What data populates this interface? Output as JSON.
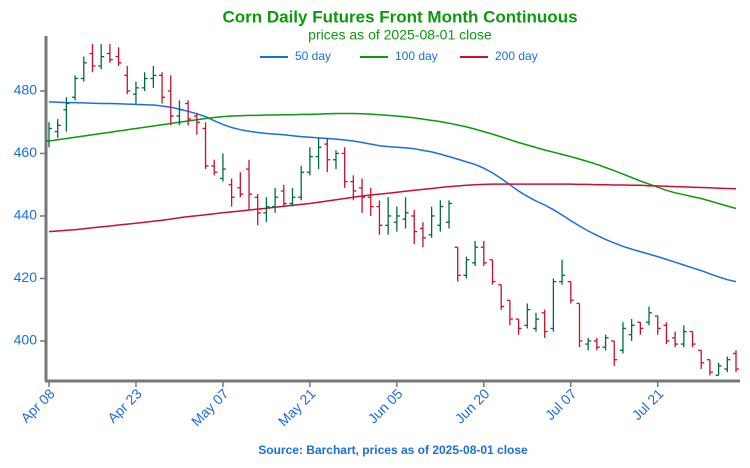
{
  "chart_data": {
    "type": "ohlc",
    "title": "Corn Daily Futures Front Month Continuous",
    "subtitle": "prices as of 2025-08-01 close",
    "footer": "Source: Barchart, prices as of 2025-08-01 close",
    "categories": [
      "Apr 08",
      null,
      null,
      null,
      null,
      null,
      null,
      null,
      null,
      null,
      "Apr 23",
      null,
      null,
      null,
      null,
      null,
      null,
      null,
      null,
      null,
      "May 07",
      null,
      null,
      null,
      null,
      null,
      null,
      null,
      null,
      null,
      "May 21",
      null,
      null,
      null,
      null,
      null,
      null,
      null,
      null,
      null,
      "Jun 05",
      null,
      null,
      null,
      null,
      null,
      null,
      null,
      null,
      null,
      "Jun 20",
      null,
      null,
      null,
      null,
      null,
      null,
      null,
      null,
      null,
      "Jul 07",
      null,
      null,
      null,
      null,
      null,
      null,
      null,
      null,
      null,
      "Jul 21",
      null,
      null,
      null,
      null,
      null,
      null,
      null,
      null,
      null
    ],
    "up_color": "#006b3c",
    "down_color": "#c8102e",
    "open": [
      464,
      467,
      474,
      478,
      484,
      492,
      488,
      492,
      491,
      485,
      479,
      481,
      484,
      485,
      480,
      472,
      476,
      472,
      468,
      456,
      452,
      450,
      449,
      455,
      446,
      441,
      443,
      448,
      444,
      446,
      454,
      459,
      463,
      458,
      460,
      451,
      449,
      446,
      443,
      437,
      438,
      439,
      440,
      436,
      434,
      437,
      438,
      430,
      421,
      425,
      430,
      426,
      418,
      413,
      407,
      405,
      404,
      409,
      404,
      419,
      419,
      412,
      399,
      400,
      398,
      400,
      397,
      402,
      406,
      406,
      408,
      405,
      401,
      399,
      403,
      397,
      394,
      389,
      391,
      396
    ],
    "high": [
      470,
      471,
      478,
      485,
      491,
      495,
      495,
      495,
      494,
      488,
      483,
      486,
      488,
      486,
      485,
      477,
      477,
      473,
      470,
      458,
      460,
      452,
      454,
      458,
      447,
      446,
      449,
      450,
      449,
      456,
      462,
      465,
      465,
      461,
      462,
      453,
      452,
      449,
      445,
      446,
      443,
      446,
      442,
      438,
      443,
      445,
      445,
      430,
      427,
      432,
      432,
      426,
      418,
      413,
      407,
      412,
      409,
      410,
      420,
      426,
      419,
      412,
      401,
      401,
      402,
      400,
      406,
      407,
      406,
      411,
      408,
      406,
      403,
      405,
      403,
      397,
      394,
      393,
      395,
      397
    ],
    "low": [
      462,
      465,
      467,
      477,
      483,
      486,
      487,
      489,
      488,
      479,
      476,
      480,
      481,
      476,
      469,
      469,
      469,
      466,
      455,
      453,
      451,
      443,
      446,
      442,
      437,
      438,
      441,
      443,
      443,
      445,
      453,
      455,
      454,
      455,
      449,
      445,
      441,
      440,
      434,
      434,
      435,
      436,
      431,
      430,
      433,
      435,
      436,
      419,
      420,
      424,
      424,
      418,
      410,
      405,
      402,
      404,
      403,
      401,
      403,
      418,
      412,
      398,
      397,
      397,
      397,
      392,
      396,
      400,
      402,
      405,
      402,
      399,
      398,
      398,
      398,
      391,
      389,
      389,
      390,
      390
    ],
    "close": [
      468,
      469,
      476,
      484,
      489,
      488,
      491,
      490,
      489,
      480,
      481,
      484,
      485,
      478,
      472,
      474,
      471,
      470,
      456,
      454,
      455,
      446,
      447,
      447,
      441,
      443,
      446,
      444,
      446,
      454,
      459,
      462,
      458,
      460,
      451,
      448,
      446,
      443,
      437,
      440,
      440,
      441,
      435,
      433,
      440,
      443,
      444,
      421,
      426,
      430,
      425,
      419,
      411,
      407,
      404,
      410,
      407,
      403,
      419,
      421,
      413,
      400,
      400,
      398,
      401,
      394,
      404,
      405,
      404,
      409,
      404,
      400,
      399,
      403,
      399,
      393,
      390,
      392,
      394,
      391
    ],
    "series": [
      {
        "name": "50 day",
        "color": "#1a6fe0",
        "values": [
          476.5,
          476.4,
          476.3,
          476.3,
          476.2,
          476.1,
          476.0,
          476.0,
          475.9,
          475.8,
          475.7,
          475.6,
          475.5,
          475.2,
          474.8,
          474.2,
          473.5,
          472.7,
          471.8,
          470.5,
          469.3,
          468.3,
          467.6,
          467.1,
          466.7,
          466.4,
          466.2,
          466.0,
          465.7,
          465.4,
          465.2,
          465.0,
          464.8,
          464.6,
          464.3,
          464.0,
          463.5,
          463.0,
          462.5,
          462.2,
          462.0,
          461.8,
          461.5,
          461.0,
          460.5,
          459.8,
          459.0,
          458.2,
          457.3,
          456.5,
          455.3,
          453.8,
          452.0,
          450.0,
          448.0,
          446.3,
          444.8,
          443.5,
          442.0,
          440.3,
          438.5,
          436.8,
          435.2,
          433.8,
          432.5,
          431.3,
          430.3,
          429.4,
          428.6,
          427.8,
          427.0,
          426.1,
          425.2,
          424.3,
          423.4,
          422.5,
          421.5,
          420.5,
          419.6,
          419.0
        ]
      },
      {
        "name": "100 day",
        "color": "#0b9a0b",
        "values": [
          464.0,
          464.4,
          464.8,
          465.2,
          465.6,
          466.0,
          466.4,
          466.8,
          467.2,
          467.6,
          468.0,
          468.4,
          468.8,
          469.2,
          469.6,
          470.0,
          470.4,
          470.8,
          471.2,
          471.5,
          471.8,
          472.0,
          472.1,
          472.2,
          472.2,
          472.3,
          472.3,
          472.4,
          472.4,
          472.5,
          472.5,
          472.6,
          472.7,
          472.8,
          472.8,
          472.8,
          472.7,
          472.6,
          472.4,
          472.2,
          472.0,
          471.7,
          471.4,
          471.0,
          470.6,
          470.2,
          469.7,
          469.1,
          468.5,
          467.8,
          467.0,
          466.2,
          465.3,
          464.4,
          463.5,
          462.7,
          461.9,
          461.1,
          460.4,
          459.7,
          459.0,
          458.2,
          457.4,
          456.5,
          455.5,
          454.5,
          453.4,
          452.3,
          451.2,
          450.2,
          449.2,
          448.2,
          447.4,
          446.8,
          446.2,
          445.6,
          444.8,
          444.0,
          443.2,
          442.4
        ]
      },
      {
        "name": "200 day",
        "color": "#c8102e",
        "values": [
          435.0,
          435.2,
          435.4,
          435.6,
          435.9,
          436.2,
          436.5,
          436.8,
          437.1,
          437.4,
          437.7,
          438.0,
          438.3,
          438.6,
          439.0,
          439.4,
          439.8,
          440.1,
          440.4,
          440.7,
          441.0,
          441.3,
          441.6,
          441.9,
          442.2,
          442.5,
          442.8,
          443.1,
          443.4,
          443.7,
          444.0,
          444.4,
          444.8,
          445.2,
          445.6,
          446.0,
          446.4,
          446.7,
          447.0,
          447.3,
          447.6,
          447.9,
          448.2,
          448.5,
          448.8,
          449.1,
          449.4,
          449.6,
          449.8,
          450.0,
          450.1,
          450.2,
          450.2,
          450.2,
          450.2,
          450.2,
          450.2,
          450.2,
          450.2,
          450.2,
          450.2,
          450.1,
          450.1,
          450.0,
          450.0,
          449.9,
          449.9,
          449.8,
          449.8,
          449.7,
          449.6,
          449.5,
          449.4,
          449.3,
          449.2,
          449.1,
          449.0,
          448.9,
          448.8,
          448.7
        ]
      }
    ],
    "ylim": [
      387.5,
      497.6
    ],
    "yticks": [
      400,
      420,
      440,
      460,
      480
    ],
    "grid": false,
    "legend": "top"
  }
}
